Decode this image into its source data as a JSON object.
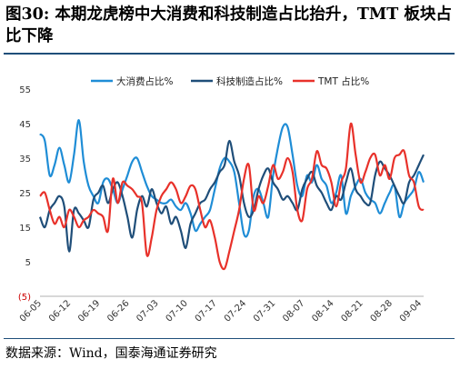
{
  "figure": {
    "title_number": "图30:",
    "title_text": "本期龙虎榜中大消费和科技制造占比抬升，TMT 板块占比下降",
    "source": "数据来源：Wind，国泰海通证券研究"
  },
  "colors": {
    "consumer": "#1f8dd6",
    "tech": "#1f4e79",
    "tmt": "#e8312a",
    "negative_label": "#cc0000"
  },
  "chart_data": {
    "type": "line",
    "title": "",
    "xlabel": "",
    "ylabel": "",
    "ylim": [
      -5,
      55
    ],
    "yticks": [
      -5,
      5,
      15,
      25,
      35,
      45,
      55
    ],
    "ytick_labels": [
      "(5)",
      "5",
      "15",
      "25",
      "35",
      "45",
      "55"
    ],
    "x_tick_labels": [
      "06-05",
      "06-12",
      "06-19",
      "06-26",
      "07-03",
      "07-10",
      "07-17",
      "07-24",
      "07-31",
      "08-07",
      "08-14",
      "08-21",
      "08-28",
      "09-04"
    ],
    "legend_position": "top",
    "grid": false,
    "series": [
      {
        "name": "大消费占比%",
        "color": "#1f8dd6",
        "values": [
          42,
          40,
          30,
          33,
          38,
          33,
          28,
          36,
          46,
          34,
          27,
          24,
          22,
          28,
          29,
          26,
          22,
          26,
          30,
          34,
          35,
          31,
          27,
          24,
          23,
          22,
          22,
          23,
          21,
          20,
          22,
          19,
          14,
          16,
          18,
          20,
          26,
          32,
          35,
          34,
          31,
          22,
          13,
          14,
          24,
          26,
          22,
          18,
          30,
          38,
          44,
          44,
          36,
          27,
          24,
          30,
          28,
          33,
          29,
          27,
          22,
          25,
          30,
          19,
          24,
          27,
          29,
          25,
          23,
          22,
          19,
          22,
          25,
          27,
          18,
          22,
          24,
          26,
          31,
          28
        ]
      },
      {
        "name": "科技制造占比%",
        "color": "#1f4e79",
        "values": [
          18,
          15,
          20,
          22,
          24,
          21,
          8,
          20,
          19,
          17,
          15,
          23,
          25,
          27,
          22,
          26,
          28,
          24,
          18,
          12,
          20,
          24,
          21,
          26,
          22,
          19,
          21,
          16,
          18,
          14,
          9,
          16,
          19,
          22,
          23,
          26,
          28,
          31,
          33,
          40,
          34,
          30,
          22,
          18,
          20,
          26,
          30,
          32,
          28,
          26,
          23,
          24,
          22,
          20,
          26,
          29,
          31,
          27,
          25,
          22,
          20,
          24,
          23,
          28,
          32,
          26,
          24,
          22,
          22,
          30,
          34,
          32,
          30,
          27,
          24,
          22,
          28,
          30,
          33,
          36
        ]
      },
      {
        "name": "TMT 占比%",
        "color": "#e8312a",
        "values": [
          24,
          25,
          20,
          16,
          18,
          15,
          20,
          18,
          15,
          17,
          18,
          20,
          19,
          18,
          14,
          29,
          22,
          28,
          27,
          26,
          24,
          22,
          7,
          12,
          20,
          24,
          26,
          28,
          26,
          22,
          24,
          27,
          26,
          20,
          15,
          17,
          12,
          5,
          3,
          8,
          14,
          20,
          29,
          33,
          20,
          24,
          22,
          27,
          33,
          29,
          31,
          35,
          31,
          20,
          17,
          26,
          29,
          37,
          33,
          32,
          28,
          21,
          28,
          32,
          45,
          36,
          28,
          31,
          35,
          36,
          30,
          33,
          29,
          35,
          36,
          37,
          30,
          28,
          21,
          20
        ]
      }
    ]
  }
}
